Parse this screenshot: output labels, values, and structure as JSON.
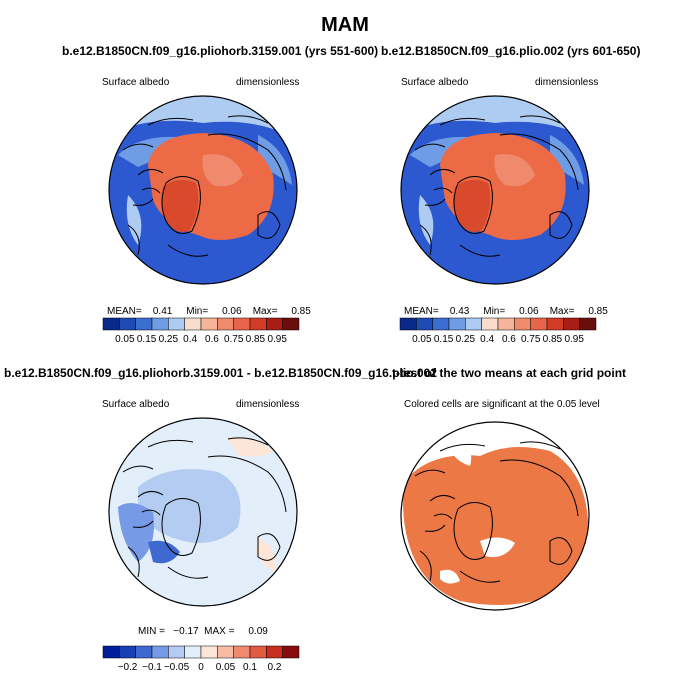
{
  "figure": {
    "title": "MAM"
  },
  "colors": {
    "scale10": [
      "#08288a",
      "#1f4bb4",
      "#3a6fd0",
      "#6e9de6",
      "#aeccf2",
      "#f8ddcd",
      "#f6b49a",
      "#f08a6c",
      "#e8654b",
      "#d33b26",
      "#a81e14",
      "#6b0d0d"
    ],
    "scaleDiff": [
      "#001e9a",
      "#1840b5",
      "#3f68d0",
      "#779ae6",
      "#b4cbf2",
      "#e3eefb",
      "#fde6d8",
      "#f6bca4",
      "#ee8a6e",
      "#e15b43",
      "#c62e1f",
      "#8a0b0b"
    ],
    "ice": "#ec6a45",
    "ocean": "#2c58d0",
    "land": "#5c84de",
    "sig": "#ec7845"
  },
  "panels": [
    {
      "id": "case1",
      "title": "b.e12.B1850CN.f09_g16.pliohorb.3159.001 (yrs 551-600)",
      "left_label": "Surface albedo",
      "right_label": "dimensionless",
      "stats": {
        "mean_label": "MEAN=",
        "mean": "0.41",
        "min_label": "Min=",
        "min": "0.06",
        "max_label": "Max=",
        "max": "0.85"
      }
    },
    {
      "id": "case2",
      "title": "b.e12.B1850CN.f09_g16.plio.002 (yrs 601-650)",
      "left_label": "Surface albedo",
      "right_label": "dimensionless",
      "stats": {
        "mean_label": "MEAN=",
        "mean": "0.43",
        "min_label": "Min=",
        "min": "0.06",
        "max_label": "Max=",
        "max": "0.85"
      }
    },
    {
      "id": "diff",
      "title": "b.e12.B1850CN.f09_g16.pliohorb.3159.001 - b.e12.B1850CN.f09_g16.plio.002",
      "left_label": "Surface albedo",
      "right_label": "dimensionless",
      "stats": {
        "min_label": "MIN =",
        "min": "−0.17",
        "max_label": "MAX =",
        "max": "0.09"
      }
    },
    {
      "id": "ttest",
      "title": "t-test of the two means at each grid point",
      "subtitle": "Colored cells are significant at the 0.05 level"
    }
  ],
  "chart_data": [
    {
      "type": "heatmap",
      "title": "b.e12.B1850CN.f09_g16.pliohorb.3159.001 (yrs 551-600)",
      "variable": "Surface albedo",
      "units": "dimensionless",
      "projection": "north polar stereographic",
      "mean": 0.41,
      "min": 0.06,
      "max": 0.85,
      "colorbar_levels": [
        0.05,
        0.1,
        0.15,
        0.2,
        0.25,
        0.3,
        0.4,
        0.5,
        0.6,
        0.7,
        0.75,
        0.8,
        0.85,
        0.9,
        0.95
      ],
      "colorbar_tick_labels": [
        "0.05",
        "0.15",
        "0.25",
        "0.4",
        "0.6",
        "0.75",
        "0.85",
        "0.95"
      ]
    },
    {
      "type": "heatmap",
      "title": "b.e12.B1850CN.f09_g16.plio.002 (yrs 601-650)",
      "variable": "Surface albedo",
      "units": "dimensionless",
      "projection": "north polar stereographic",
      "mean": 0.43,
      "min": 0.06,
      "max": 0.85,
      "colorbar_levels": [
        0.05,
        0.1,
        0.15,
        0.2,
        0.25,
        0.3,
        0.4,
        0.5,
        0.6,
        0.7,
        0.75,
        0.8,
        0.85,
        0.9,
        0.95
      ],
      "colorbar_tick_labels": [
        "0.05",
        "0.15",
        "0.25",
        "0.4",
        "0.6",
        "0.75",
        "0.85",
        "0.95"
      ]
    },
    {
      "type": "heatmap",
      "title": "b.e12.B1850CN.f09_g16.pliohorb.3159.001 - b.e12.B1850CN.f09_g16.plio.002",
      "variable": "Surface albedo",
      "units": "dimensionless",
      "projection": "north polar stereographic",
      "min": -0.17,
      "max": 0.09,
      "colorbar_levels": [
        -0.2,
        -0.15,
        -0.1,
        -0.075,
        -0.05,
        -0.025,
        0,
        0.025,
        0.05,
        0.075,
        0.1,
        0.15,
        0.2
      ],
      "colorbar_tick_labels": [
        "−0.2",
        "−0.1",
        "−0.05",
        "0",
        "0.05",
        "0.1",
        "0.2"
      ]
    },
    {
      "type": "heatmap",
      "title": "t-test of the two means at each grid point",
      "note": "Colored cells are significant at the 0.05 level",
      "projection": "north polar stereographic"
    }
  ]
}
